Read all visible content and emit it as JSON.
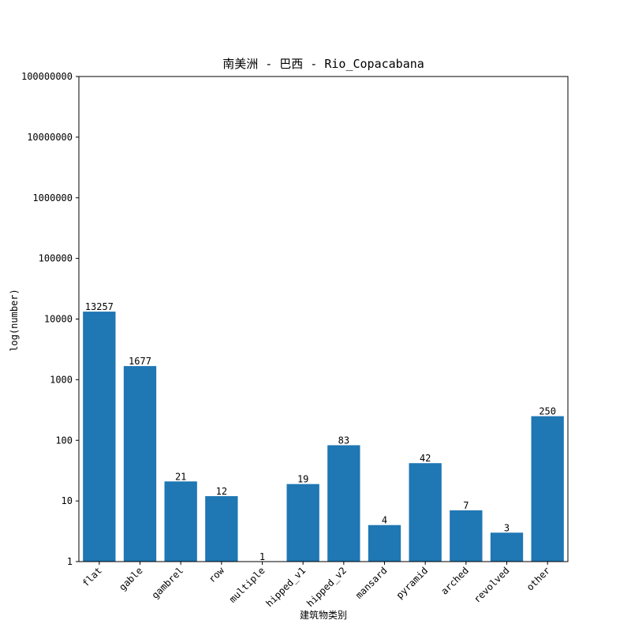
{
  "chart_data": {
    "type": "bar",
    "title": "南美洲 - 巴西 - Rio_Copacabana",
    "xlabel": "建筑物类别",
    "ylabel": "log(number)",
    "yscale": "log",
    "ylim": [
      1,
      100000000
    ],
    "y_ticks": [
      "1",
      "10",
      "100",
      "1000",
      "10000",
      "100000",
      "1000000",
      "10000000",
      "100000000"
    ],
    "categories": [
      "flat",
      "gable",
      "gambrel",
      "row",
      "multiple",
      "hipped_v1",
      "hipped_v2",
      "mansard",
      "pyramid",
      "arched",
      "revolved",
      "other"
    ],
    "values": [
      13257,
      1677,
      21,
      12,
      1,
      19,
      83,
      4,
      42,
      7,
      3,
      250
    ],
    "bar_color": "#1f77b4",
    "grid": false,
    "legend": false
  }
}
